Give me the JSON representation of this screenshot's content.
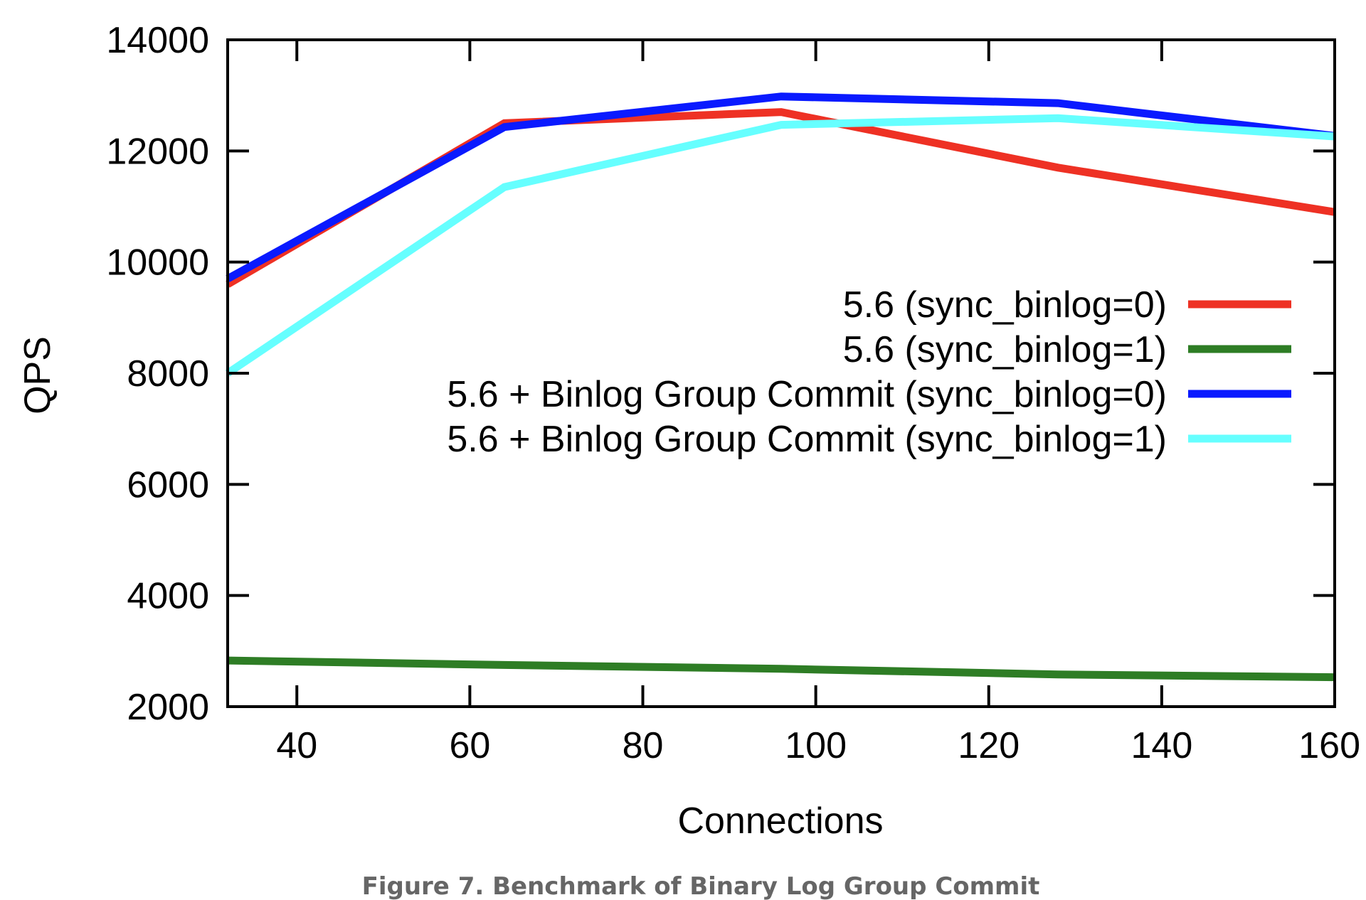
{
  "chart_data": {
    "type": "line",
    "title": "",
    "xlabel": "Connections",
    "ylabel": "QPS",
    "xlim": [
      32,
      160
    ],
    "ylim": [
      2000,
      14000
    ],
    "xticks": [
      40,
      60,
      80,
      100,
      120,
      140,
      160
    ],
    "yticks": [
      2000,
      4000,
      6000,
      8000,
      10000,
      12000,
      14000
    ],
    "xtick_labels": [
      "40",
      "60",
      "80",
      "100",
      "120",
      "140",
      "160"
    ],
    "ytick_labels": [
      "2000",
      "4000",
      "6000",
      "8000",
      "10000",
      "12000",
      "14000"
    ],
    "grid": false,
    "legend_position": "right",
    "x": [
      32,
      64,
      96,
      128,
      160
    ],
    "series": [
      {
        "name": "5.6 (sync_binlog=0)",
        "color": "#ee3124",
        "values": [
          9600,
          12500,
          12700,
          11700,
          10900
        ]
      },
      {
        "name": "5.6 (sync_binlog=1)",
        "color": "#2e7d25",
        "values": [
          2830,
          2750,
          2680,
          2580,
          2530
        ]
      },
      {
        "name": "5.6 + Binlog Group Commit (sync_binlog=0)",
        "color": "#0a1aff",
        "values": [
          9700,
          12430,
          12980,
          12860,
          12270
        ]
      },
      {
        "name": "5.6 + Binlog Group Commit (sync_binlog=1)",
        "color": "#66ffff",
        "values": [
          8000,
          11350,
          12470,
          12590,
          12260
        ]
      }
    ]
  },
  "caption": "Figure 7. Benchmark of Binary Log Group Commit"
}
